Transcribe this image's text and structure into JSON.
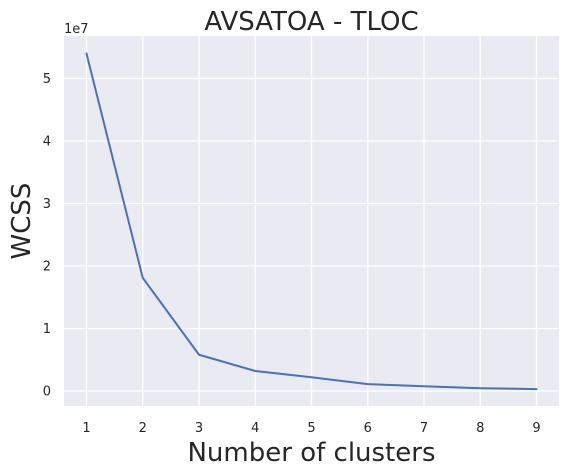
{
  "chart_data": {
    "type": "line",
    "title": "AVSATOA - TLOC",
    "xlabel": "Number of clusters",
    "ylabel": "WCSS",
    "y_offset_label": "1e7",
    "x": [
      1,
      2,
      3,
      4,
      5,
      6,
      7,
      8,
      9
    ],
    "series": [
      {
        "values": [
          54000000,
          18100000,
          5800000,
          3200000,
          2200000,
          1100000,
          750000,
          450000,
          300000
        ]
      }
    ],
    "x_ticks": [
      1,
      2,
      3,
      4,
      5,
      6,
      7,
      8,
      9
    ],
    "x_tick_labels": [
      "1",
      "2",
      "3",
      "4",
      "5",
      "6",
      "7",
      "8",
      "9"
    ],
    "y_ticks": [
      0,
      10000000,
      20000000,
      30000000,
      40000000,
      50000000
    ],
    "y_tick_labels": [
      "0",
      "1",
      "2",
      "3",
      "4",
      "5"
    ],
    "xlim": [
      0.6,
      9.4
    ],
    "ylim": [
      -2400000,
      56800000
    ],
    "grid": true,
    "colors": {
      "plot_background": "#eaeaf2",
      "grid": "#ffffff",
      "line": "#4c72b0",
      "text": "#262626"
    }
  }
}
